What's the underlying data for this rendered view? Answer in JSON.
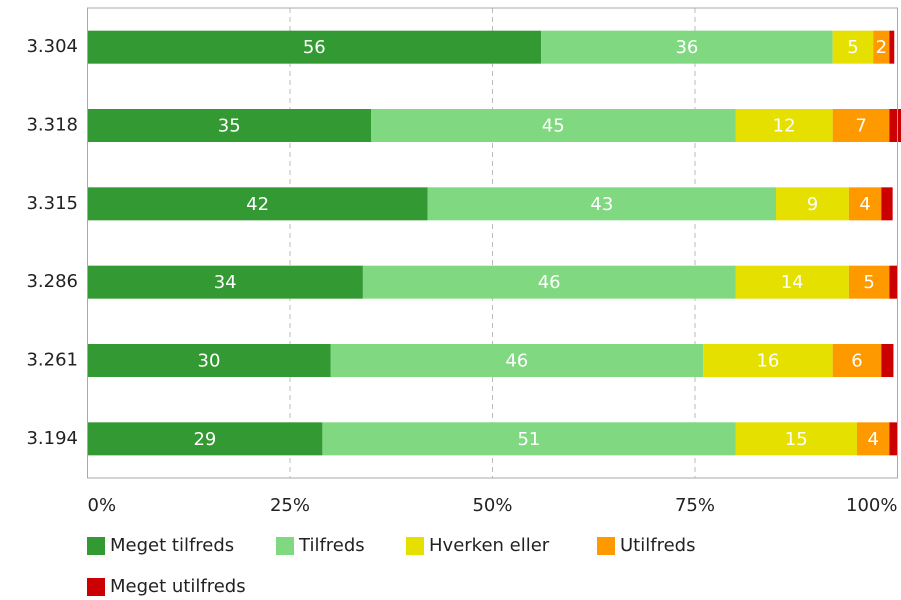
{
  "chart_data": {
    "type": "stacked_barh",
    "categories": [
      "3.304",
      "3.318",
      "3.315",
      "3.286",
      "3.261",
      "3.194"
    ],
    "series": [
      {
        "name": "Meget tilfreds",
        "color": "#339933",
        "values": [
          56,
          35,
          42,
          34,
          30,
          29
        ]
      },
      {
        "name": "Tilfreds",
        "color": "#80d880",
        "values": [
          36,
          45,
          43,
          46,
          46,
          51
        ]
      },
      {
        "name": "Hverken eller",
        "color": "#e5e000",
        "values": [
          5,
          12,
          9,
          14,
          16,
          15
        ]
      },
      {
        "name": "Utilfreds",
        "color": "#ff9900",
        "values": [
          2,
          7,
          4,
          5,
          6,
          4
        ]
      },
      {
        "name": "Meget utilfreds",
        "color": "#cc0000",
        "values": [
          0.6,
          1.6,
          1.4,
          1.0,
          1.5,
          1.0
        ],
        "value_labels": [
          null,
          null,
          null,
          null,
          null,
          null
        ]
      }
    ],
    "xlim": [
      0,
      100
    ],
    "xticks": [
      {
        "value": 0,
        "label": "0%"
      },
      {
        "value": 25,
        "label": "25%"
      },
      {
        "value": 50,
        "label": "50%"
      },
      {
        "value": 75,
        "label": "75%"
      },
      {
        "value": 100,
        "label": "100%"
      }
    ],
    "grid": true,
    "legend": "bottom"
  }
}
